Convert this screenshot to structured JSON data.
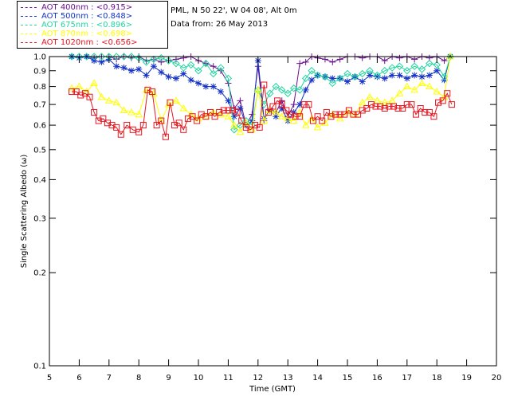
{
  "header": {
    "site_line": "PML, N 50 22', W 04 08', Alt 0m",
    "date_line": "Data from: 26 May 2013"
  },
  "legend": [
    {
      "label": "AOT  400nm : <0.915>",
      "color": "#6a0f8e"
    },
    {
      "label": "AOT  500nm : <0.848>",
      "color": "#1432c8"
    },
    {
      "label": "AOT  675nm : <0.896>",
      "color": "#22d6a0"
    },
    {
      "label": "AOT  870nm : <0.698>",
      "color": "#ffff00"
    },
    {
      "label": "AOT 1020nm : <0.656>",
      "color": "#e8141e"
    }
  ],
  "chart_data": {
    "type": "line",
    "xlabel": "Time (GMT)",
    "ylabel": "Single Scattering Albedo (ω)",
    "xlim": [
      5,
      20
    ],
    "ylim": [
      0.1,
      1.0
    ],
    "yscale": "log",
    "xticks": [
      "5",
      "6",
      "7",
      "8",
      "9",
      "10",
      "11",
      "12",
      "13",
      "14",
      "15",
      "16",
      "17",
      "18",
      "19",
      "20"
    ],
    "yticks": [
      {
        "value": 1.0,
        "label": "1.0"
      },
      {
        "value": 0.9,
        "label": "0.9"
      },
      {
        "value": 0.8,
        "label": "0.8"
      },
      {
        "value": 0.7,
        "label": "0.7"
      },
      {
        "value": 0.6,
        "label": "0.6"
      },
      {
        "value": 0.5,
        "label": "0.5"
      },
      {
        "value": 0.4,
        "label": "0.4"
      },
      {
        "value": 0.3,
        "label": "0.3"
      },
      {
        "value": 0.2,
        "label": "0.2"
      },
      {
        "value": 0.1,
        "label": "0.1"
      }
    ],
    "series": [
      {
        "name": "AOT  400nm : <0.915>",
        "color": "#6a0f8e",
        "marker": "plus",
        "x": [
          5.75,
          6.0,
          6.25,
          6.5,
          6.75,
          7.0,
          7.25,
          7.5,
          7.75,
          8.0,
          8.25,
          8.5,
          8.75,
          9.0,
          9.25,
          9.5,
          9.75,
          10.0,
          10.25,
          10.5,
          10.75,
          11.0,
          11.2,
          11.4,
          11.6,
          11.8,
          12.0,
          12.2,
          12.4,
          12.6,
          12.8,
          13.0,
          13.2,
          13.4,
          13.6,
          13.8,
          14.0,
          14.25,
          14.5,
          14.75,
          15.0,
          15.25,
          15.5,
          15.75,
          16.0,
          16.25,
          16.5,
          16.75,
          17.0,
          17.25,
          17.5,
          17.75,
          18.0,
          18.25,
          18.45
        ],
        "y": [
          1.0,
          1.0,
          1.0,
          0.99,
          1.0,
          1.0,
          0.98,
          1.0,
          0.99,
          1.0,
          0.97,
          0.98,
          0.96,
          0.97,
          0.98,
          0.99,
          1.0,
          0.97,
          0.95,
          0.93,
          0.9,
          0.82,
          0.68,
          0.72,
          0.6,
          0.65,
          0.93,
          0.62,
          0.68,
          0.66,
          0.72,
          0.64,
          0.7,
          0.95,
          0.96,
          1.0,
          0.99,
          0.98,
          0.96,
          0.98,
          1.0,
          1.0,
          0.99,
          1.0,
          1.0,
          0.97,
          1.0,
          0.99,
          1.0,
          0.98,
          1.0,
          0.99,
          1.0,
          0.97,
          1.0
        ]
      },
      {
        "name": "AOT  500nm : <0.848>",
        "color": "#1432c8",
        "marker": "star",
        "x": [
          5.75,
          6.0,
          6.25,
          6.5,
          6.75,
          7.0,
          7.25,
          7.5,
          7.75,
          8.0,
          8.25,
          8.5,
          8.75,
          9.0,
          9.25,
          9.5,
          9.75,
          10.0,
          10.25,
          10.5,
          10.75,
          11.0,
          11.2,
          11.4,
          11.6,
          11.8,
          12.0,
          12.2,
          12.4,
          12.6,
          12.8,
          13.0,
          13.2,
          13.4,
          13.6,
          13.8,
          14.0,
          14.25,
          14.5,
          14.75,
          15.0,
          15.25,
          15.5,
          15.75,
          16.0,
          16.25,
          16.5,
          16.75,
          17.0,
          17.25,
          17.5,
          17.75,
          18.0,
          18.25,
          18.45
        ],
        "y": [
          1.0,
          0.99,
          1.0,
          0.97,
          0.96,
          0.98,
          0.93,
          0.92,
          0.9,
          0.91,
          0.87,
          0.93,
          0.89,
          0.86,
          0.85,
          0.88,
          0.84,
          0.82,
          0.8,
          0.8,
          0.77,
          0.72,
          0.64,
          0.68,
          0.6,
          0.62,
          0.97,
          0.63,
          0.67,
          0.64,
          0.68,
          0.62,
          0.66,
          0.7,
          0.78,
          0.84,
          0.87,
          0.86,
          0.85,
          0.85,
          0.83,
          0.86,
          0.83,
          0.87,
          0.86,
          0.85,
          0.87,
          0.87,
          0.85,
          0.87,
          0.86,
          0.87,
          0.9,
          0.84,
          1.0
        ]
      },
      {
        "name": "AOT  675nm : <0.896>",
        "color": "#22d6a0",
        "marker": "diamond",
        "x": [
          5.75,
          6.0,
          6.25,
          6.5,
          6.75,
          7.0,
          7.25,
          7.5,
          7.75,
          8.0,
          8.25,
          8.5,
          8.75,
          9.0,
          9.25,
          9.5,
          9.75,
          10.0,
          10.25,
          10.5,
          10.75,
          11.0,
          11.2,
          11.4,
          11.6,
          11.8,
          12.0,
          12.2,
          12.4,
          12.6,
          12.8,
          13.0,
          13.2,
          13.4,
          13.6,
          13.8,
          14.0,
          14.25,
          14.5,
          14.75,
          15.0,
          15.25,
          15.5,
          15.75,
          16.0,
          16.25,
          16.5,
          16.75,
          17.0,
          17.25,
          17.5,
          17.75,
          18.0,
          18.25,
          18.45
        ],
        "y": [
          1.0,
          1.0,
          1.0,
          1.0,
          1.0,
          1.0,
          1.0,
          1.0,
          1.0,
          0.99,
          0.96,
          0.98,
          0.99,
          0.97,
          0.95,
          0.92,
          0.94,
          0.9,
          0.95,
          0.88,
          0.92,
          0.85,
          0.58,
          0.6,
          0.62,
          0.6,
          0.78,
          0.7,
          0.76,
          0.8,
          0.78,
          0.76,
          0.79,
          0.78,
          0.85,
          0.9,
          0.87,
          0.86,
          0.82,
          0.85,
          0.88,
          0.86,
          0.88,
          0.9,
          0.87,
          0.9,
          0.92,
          0.93,
          0.9,
          0.93,
          0.91,
          0.95,
          0.94,
          0.86,
          1.0
        ]
      },
      {
        "name": "AOT  870nm : <0.698>",
        "color": "#ffff00",
        "marker": "triangle",
        "x": [
          5.75,
          6.0,
          6.25,
          6.5,
          6.75,
          7.0,
          7.25,
          7.5,
          7.75,
          8.0,
          8.25,
          8.5,
          8.75,
          9.0,
          9.25,
          9.5,
          9.75,
          10.0,
          10.25,
          10.5,
          10.75,
          11.0,
          11.2,
          11.4,
          11.6,
          11.8,
          12.0,
          12.2,
          12.4,
          12.6,
          12.8,
          13.0,
          13.2,
          13.4,
          13.6,
          13.8,
          14.0,
          14.25,
          14.5,
          14.75,
          15.0,
          15.25,
          15.5,
          15.75,
          16.0,
          16.25,
          16.5,
          16.75,
          17.0,
          17.25,
          17.5,
          17.75,
          18.0,
          18.25,
          18.45
        ],
        "y": [
          0.79,
          0.8,
          0.77,
          0.82,
          0.74,
          0.72,
          0.71,
          0.67,
          0.66,
          0.65,
          0.78,
          0.76,
          0.62,
          0.7,
          0.72,
          0.68,
          0.65,
          0.63,
          0.64,
          0.66,
          0.65,
          0.64,
          0.6,
          0.57,
          0.61,
          0.58,
          0.78,
          0.62,
          0.67,
          0.66,
          0.64,
          0.63,
          0.62,
          0.66,
          0.6,
          0.63,
          0.59,
          0.61,
          0.65,
          0.63,
          0.66,
          0.65,
          0.71,
          0.74,
          0.72,
          0.71,
          0.72,
          0.76,
          0.8,
          0.78,
          0.82,
          0.8,
          0.77,
          0.74,
          1.0
        ]
      },
      {
        "name": "AOT 1020nm : <0.656>",
        "color": "#e8141e",
        "marker": "square",
        "x": [
          5.75,
          5.9,
          6.05,
          6.2,
          6.35,
          6.5,
          6.65,
          6.8,
          6.95,
          7.1,
          7.25,
          7.4,
          7.6,
          7.8,
          8.0,
          8.15,
          8.3,
          8.45,
          8.6,
          8.75,
          8.9,
          9.05,
          9.2,
          9.35,
          9.5,
          9.65,
          9.8,
          9.95,
          10.1,
          10.25,
          10.4,
          10.55,
          10.7,
          10.85,
          11.0,
          11.15,
          11.3,
          11.45,
          11.6,
          11.75,
          11.9,
          12.05,
          12.2,
          12.35,
          12.5,
          12.65,
          12.8,
          12.95,
          13.1,
          13.25,
          13.4,
          13.55,
          13.7,
          13.85,
          14.0,
          14.15,
          14.3,
          14.45,
          14.6,
          14.75,
          14.9,
          15.05,
          15.2,
          15.35,
          15.5,
          15.65,
          15.8,
          15.95,
          16.1,
          16.25,
          16.4,
          16.55,
          16.7,
          16.85,
          17.0,
          17.15,
          17.3,
          17.45,
          17.6,
          17.75,
          17.9,
          18.05,
          18.2,
          18.35,
          18.5
        ],
        "y": [
          0.77,
          0.77,
          0.75,
          0.76,
          0.74,
          0.66,
          0.62,
          0.63,
          0.61,
          0.6,
          0.59,
          0.56,
          0.6,
          0.58,
          0.57,
          0.6,
          0.78,
          0.77,
          0.6,
          0.62,
          0.55,
          0.71,
          0.6,
          0.61,
          0.58,
          0.63,
          0.64,
          0.62,
          0.65,
          0.64,
          0.66,
          0.64,
          0.66,
          0.67,
          0.67,
          0.67,
          0.66,
          0.62,
          0.59,
          0.58,
          0.6,
          0.59,
          0.81,
          0.66,
          0.69,
          0.72,
          0.7,
          0.67,
          0.65,
          0.64,
          0.64,
          0.7,
          0.7,
          0.62,
          0.64,
          0.62,
          0.66,
          0.64,
          0.65,
          0.65,
          0.65,
          0.67,
          0.65,
          0.65,
          0.67,
          0.68,
          0.7,
          0.69,
          0.69,
          0.68,
          0.69,
          0.69,
          0.68,
          0.68,
          0.7,
          0.7,
          0.65,
          0.68,
          0.66,
          0.66,
          0.64,
          0.71,
          0.72,
          0.76,
          0.7
        ]
      }
    ]
  }
}
